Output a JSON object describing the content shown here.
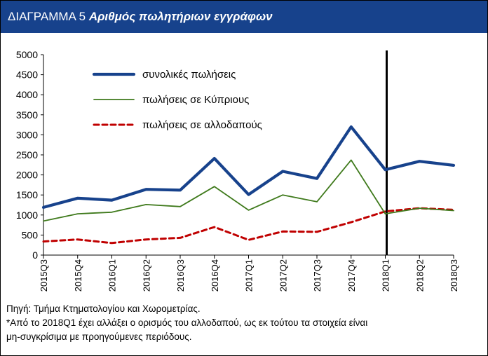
{
  "header": {
    "prefix": "ΔΙΑΓΡΑΜΜΑ 5",
    "title": "Αριθμός πωλητήριων εγγράφων"
  },
  "notes": {
    "source": "Πηγή: Τμήμα Κτηματολογίου και Χωρομετρίας.",
    "footnote_line1": "*Από το 2018Q1 έχει αλλάξει ο ορισμός του αλλοδαπού, ως εκ τούτου τα στοιχεία είναι",
    "footnote_line2": "μη-συγκρίσιμα με προηγούμενες περιόδους."
  },
  "colors": {
    "header_bg": "#17428c",
    "total": "#17428c",
    "cypriots": "#3f7a1c",
    "foreigners": "#c00000",
    "marker": "#000000"
  },
  "chart_data": {
    "type": "line",
    "title": "Αριθμός πωλητήριων εγγράφων",
    "categories": [
      "2015Q3",
      "2015Q4",
      "2016Q1",
      "2016Q2",
      "2016Q3",
      "2016Q4",
      "2017Q1",
      "2017Q2",
      "2017Q3",
      "2017Q4",
      "2018Q1",
      "2018Q2",
      "2018Q3"
    ],
    "y_ticks": [
      0,
      500,
      1000,
      1500,
      2000,
      2500,
      3000,
      3500,
      4000,
      4500,
      5000
    ],
    "ylim": [
      0,
      5000
    ],
    "grid": false,
    "legend_position": "top-left",
    "vertical_marker_category": "2018Q1",
    "series": [
      {
        "name": "συνολικές πωλήσεις",
        "style": "solid-thick",
        "color": "#17428c",
        "values": [
          1190,
          1420,
          1370,
          1640,
          1620,
          2410,
          1510,
          2090,
          1910,
          3200,
          2130,
          2340,
          2240
        ]
      },
      {
        "name": "πωλήσεις σε Κύπριους",
        "style": "solid-thin",
        "color": "#3f7a1c",
        "values": [
          850,
          1030,
          1070,
          1260,
          1210,
          1710,
          1120,
          1500,
          1330,
          2370,
          1030,
          1170,
          1110
        ]
      },
      {
        "name": "πωλήσεις σε αλλοδαπούς",
        "style": "dashed",
        "color": "#c00000",
        "values": [
          340,
          390,
          300,
          390,
          430,
          700,
          380,
          590,
          580,
          820,
          1090,
          1170,
          1130
        ]
      }
    ]
  }
}
